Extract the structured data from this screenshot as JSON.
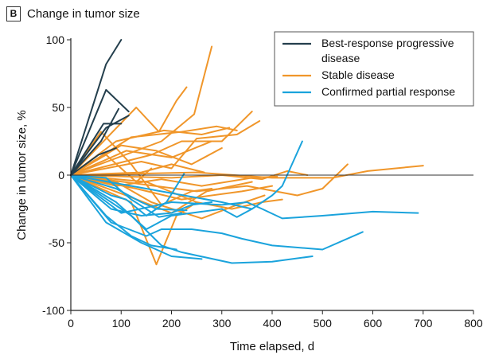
{
  "panel": {
    "label": "B",
    "title": "Change in tumor size"
  },
  "colors": {
    "progressive": "#243f4d",
    "stable": "#f0962a",
    "partial": "#1aa3dc",
    "axis": "#222222",
    "zero_line": "#333333"
  },
  "chart_data": {
    "type": "line",
    "title": "Change in tumor size",
    "xlabel": "Time elapsed, d",
    "ylabel": "Change in tumor size, %",
    "xlim": [
      0,
      800
    ],
    "ylim": [
      -100,
      100
    ],
    "x_ticks": [
      0,
      100,
      200,
      300,
      400,
      500,
      600,
      700,
      800
    ],
    "y_ticks": [
      -100,
      -50,
      0,
      50,
      100
    ],
    "grid": false,
    "reference_line_y": 0,
    "legend": {
      "placement": "top-right",
      "entries": [
        {
          "group": "progressive",
          "label": "Best-response progressive disease"
        },
        {
          "group": "stable",
          "label": "Stable disease"
        },
        {
          "group": "partial",
          "label": "Confirmed partial response"
        }
      ]
    },
    "series": [
      {
        "group": "progressive",
        "points": [
          [
            0,
            0
          ],
          [
            70,
            82
          ],
          [
            100,
            100
          ]
        ]
      },
      {
        "group": "progressive",
        "points": [
          [
            0,
            0
          ],
          [
            70,
            63
          ],
          [
            115,
            47
          ]
        ]
      },
      {
        "group": "progressive",
        "points": [
          [
            0,
            0
          ],
          [
            65,
            38
          ],
          [
            100,
            38
          ]
        ]
      },
      {
        "group": "progressive",
        "points": [
          [
            0,
            0
          ],
          [
            70,
            35
          ],
          [
            115,
            44
          ]
        ]
      },
      {
        "group": "progressive",
        "points": [
          [
            0,
            0
          ],
          [
            60,
            25
          ],
          [
            95,
            49
          ]
        ]
      },
      {
        "group": "progressive",
        "points": [
          [
            0,
            0
          ],
          [
            55,
            15
          ],
          [
            90,
            20
          ]
        ]
      },
      {
        "group": "stable",
        "points": [
          [
            0,
            0
          ],
          [
            130,
            50
          ],
          [
            175,
            32
          ],
          [
            210,
            55
          ],
          [
            230,
            65
          ]
        ]
      },
      {
        "group": "stable",
        "points": [
          [
            0,
            0
          ],
          [
            180,
            25
          ],
          [
            245,
            45
          ],
          [
            280,
            95
          ]
        ]
      },
      {
        "group": "stable",
        "points": [
          [
            0,
            0
          ],
          [
            90,
            25
          ],
          [
            185,
            33
          ],
          [
            260,
            30
          ],
          [
            315,
            35
          ]
        ]
      },
      {
        "group": "stable",
        "points": [
          [
            0,
            0
          ],
          [
            120,
            28
          ],
          [
            220,
            32
          ],
          [
            290,
            36
          ],
          [
            330,
            33
          ]
        ]
      },
      {
        "group": "stable",
        "points": [
          [
            0,
            0
          ],
          [
            160,
            15
          ],
          [
            220,
            25
          ],
          [
            300,
            25
          ],
          [
            360,
            47
          ]
        ]
      },
      {
        "group": "stable",
        "points": [
          [
            0,
            0
          ],
          [
            140,
            10
          ],
          [
            200,
            5
          ],
          [
            250,
            27
          ],
          [
            330,
            30
          ],
          [
            375,
            40
          ]
        ]
      },
      {
        "group": "stable",
        "points": [
          [
            0,
            0
          ],
          [
            100,
            22
          ],
          [
            170,
            18
          ],
          [
            240,
            8
          ],
          [
            300,
            20
          ]
        ]
      },
      {
        "group": "stable",
        "points": [
          [
            0,
            0
          ],
          [
            110,
            18
          ],
          [
            200,
            13
          ],
          [
            280,
            25
          ]
        ]
      },
      {
        "group": "stable",
        "points": [
          [
            0,
            0
          ],
          [
            140,
            2
          ],
          [
            200,
            8
          ],
          [
            265,
            2
          ]
        ]
      },
      {
        "group": "stable",
        "points": [
          [
            0,
            0
          ],
          [
            60,
            32
          ],
          [
            120,
            8
          ],
          [
            180,
            -22
          ],
          [
            240,
            -12
          ],
          [
            280,
            -10
          ]
        ]
      },
      {
        "group": "stable",
        "points": [
          [
            0,
            0
          ],
          [
            120,
            -20
          ],
          [
            170,
            -66
          ],
          [
            210,
            -30
          ],
          [
            250,
            -20
          ]
        ]
      },
      {
        "group": "stable",
        "points": [
          [
            0,
            0
          ],
          [
            90,
            -5
          ],
          [
            160,
            -20
          ],
          [
            260,
            -32
          ],
          [
            330,
            -22
          ],
          [
            385,
            -15
          ]
        ]
      },
      {
        "group": "stable",
        "points": [
          [
            0,
            0
          ],
          [
            130,
            -10
          ],
          [
            220,
            -18
          ],
          [
            340,
            -12
          ],
          [
            400,
            -8
          ]
        ]
      },
      {
        "group": "stable",
        "points": [
          [
            0,
            0
          ],
          [
            110,
            -15
          ],
          [
            200,
            -28
          ],
          [
            270,
            -12
          ],
          [
            360,
            -5
          ]
        ]
      },
      {
        "group": "stable",
        "points": [
          [
            0,
            0
          ],
          [
            90,
            -8
          ],
          [
            180,
            -3
          ],
          [
            260,
            -8
          ],
          [
            360,
            -2
          ],
          [
            410,
            -1
          ]
        ]
      },
      {
        "group": "stable",
        "points": [
          [
            0,
            0
          ],
          [
            150,
            -5
          ],
          [
            250,
            -20
          ],
          [
            320,
            -25
          ],
          [
            380,
            -20
          ],
          [
            420,
            -18
          ]
        ]
      },
      {
        "group": "stable",
        "points": [
          [
            0,
            0
          ],
          [
            200,
            -2
          ],
          [
            300,
            0
          ],
          [
            380,
            -3
          ],
          [
            430,
            3
          ],
          [
            470,
            0
          ]
        ]
      },
      {
        "group": "stable",
        "points": [
          [
            0,
            0
          ],
          [
            250,
            -12
          ],
          [
            350,
            -8
          ],
          [
            450,
            -15
          ],
          [
            500,
            -10
          ],
          [
            550,
            8
          ]
        ]
      },
      {
        "group": "stable",
        "points": [
          [
            0,
            0
          ],
          [
            250,
            2
          ],
          [
            400,
            -2
          ],
          [
            520,
            -2
          ],
          [
            590,
            3
          ],
          [
            700,
            7
          ]
        ]
      },
      {
        "group": "stable",
        "points": [
          [
            0,
            0
          ],
          [
            70,
            15
          ],
          [
            130,
            -5
          ],
          [
            160,
            5
          ]
        ]
      },
      {
        "group": "partial",
        "points": [
          [
            0,
            0
          ],
          [
            80,
            -25
          ],
          [
            140,
            -30
          ],
          [
            200,
            -28
          ],
          [
            240,
            -22
          ],
          [
            280,
            -20
          ]
        ]
      },
      {
        "group": "partial",
        "points": [
          [
            0,
            0
          ],
          [
            80,
            -15
          ],
          [
            110,
            -18
          ],
          [
            150,
            -30
          ],
          [
            190,
            -20
          ],
          [
            225,
            1
          ]
        ]
      },
      {
        "group": "partial",
        "points": [
          [
            0,
            0
          ],
          [
            90,
            -20
          ],
          [
            150,
            -40
          ],
          [
            200,
            -30
          ],
          [
            240,
            -28
          ],
          [
            300,
            -25
          ],
          [
            330,
            -31
          ],
          [
            360,
            -25
          ]
        ]
      },
      {
        "group": "partial",
        "points": [
          [
            0,
            0
          ],
          [
            70,
            -30
          ],
          [
            120,
            -45
          ],
          [
            160,
            -52
          ],
          [
            210,
            -55
          ]
        ]
      },
      {
        "group": "partial",
        "points": [
          [
            0,
            0
          ],
          [
            80,
            -35
          ],
          [
            150,
            -45
          ],
          [
            180,
            -40
          ],
          [
            240,
            -40
          ],
          [
            300,
            -43
          ],
          [
            340,
            -47
          ],
          [
            400,
            -52
          ],
          [
            500,
            -55
          ],
          [
            580,
            -42
          ]
        ]
      },
      {
        "group": "partial",
        "points": [
          [
            0,
            0
          ],
          [
            70,
            -35
          ],
          [
            140,
            -50
          ],
          [
            200,
            -60
          ],
          [
            260,
            -62
          ]
        ]
      },
      {
        "group": "partial",
        "points": [
          [
            0,
            0
          ],
          [
            120,
            -30
          ],
          [
            180,
            -52
          ],
          [
            220,
            -57
          ],
          [
            320,
            -65
          ],
          [
            400,
            -64
          ],
          [
            480,
            -60
          ]
        ]
      },
      {
        "group": "partial",
        "points": [
          [
            0,
            0
          ],
          [
            100,
            -28
          ],
          [
            200,
            -20
          ],
          [
            300,
            -22
          ],
          [
            350,
            -20
          ],
          [
            380,
            -25
          ],
          [
            420,
            -32
          ],
          [
            500,
            -30
          ],
          [
            600,
            -27
          ],
          [
            690,
            -28
          ]
        ]
      },
      {
        "group": "partial",
        "points": [
          [
            0,
            0
          ],
          [
            90,
            -10
          ],
          [
            140,
            -20
          ],
          [
            170,
            -25
          ],
          [
            230,
            -26
          ]
        ]
      },
      {
        "group": "partial",
        "points": [
          [
            0,
            0
          ],
          [
            70,
            -2
          ],
          [
            120,
            -18
          ],
          [
            175,
            -31
          ],
          [
            220,
            -28
          ]
        ]
      },
      {
        "group": "partial",
        "points": [
          [
            0,
            0
          ],
          [
            300,
            -20
          ],
          [
            360,
            -25
          ],
          [
            400,
            -15
          ],
          [
            420,
            -8
          ],
          [
            460,
            25
          ]
        ]
      }
    ]
  }
}
